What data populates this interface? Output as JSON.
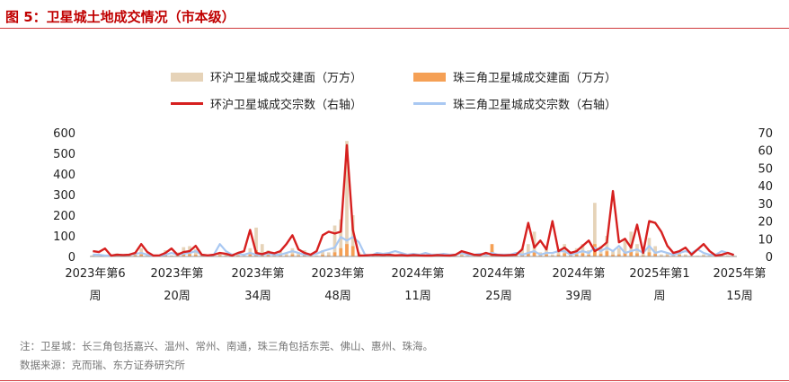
{
  "header": {
    "title": "图 5：卫星城土地成交情况（市本级）"
  },
  "footer": {
    "note": "注：卫星城：长三角包括嘉兴、温州、常州、南通，珠三角包括东莞、佛山、惠州、珠海。",
    "source": "数据来源：克而瑞、东方证券研究所"
  },
  "chart_data": {
    "type": "bar",
    "title": "",
    "xlabel": "",
    "ylabel": "",
    "ylim": [
      0,
      600
    ],
    "y2lim": [
      0,
      70
    ],
    "y_ticks": [
      "0",
      "100",
      "200",
      "300",
      "400",
      "500",
      "600"
    ],
    "y2_ticks": [
      "0",
      "10",
      "20",
      "30",
      "40",
      "50",
      "60",
      "70"
    ],
    "x_tick_labels": [
      [
        "2023年第6",
        "周"
      ],
      [
        "2023年第",
        "20周"
      ],
      [
        "2023年第",
        "34周"
      ],
      [
        "2023年第",
        "48周"
      ],
      [
        "2024年第",
        "11周"
      ],
      [
        "2024年第",
        "25周"
      ],
      [
        "2024年第",
        "39周"
      ],
      [
        "2025年第1",
        "周"
      ],
      [
        "2025年第",
        "15周"
      ]
    ],
    "legend_position": "top",
    "colors": {
      "yrd_area": "#e6d3b8",
      "prd_area": "#f5a055",
      "yrd_count": "#d6201f",
      "prd_count": "#a9c8f2"
    },
    "series": [
      {
        "name": "环沪卫星城成交建面（万方）",
        "axis": "left",
        "kind": "bar",
        "values": [
          6,
          3,
          8,
          2,
          15,
          4,
          10,
          18,
          40,
          6,
          2,
          4,
          30,
          5,
          20,
          45,
          50,
          35,
          10,
          8,
          3,
          20,
          10,
          8,
          15,
          5,
          40,
          140,
          60,
          30,
          10,
          25,
          15,
          40,
          20,
          30,
          10,
          5,
          30,
          20,
          150,
          180,
          560,
          200,
          20,
          5,
          10,
          8,
          3,
          15,
          5,
          10,
          4,
          8,
          3,
          5,
          2,
          4,
          6,
          8,
          3,
          20,
          5,
          4,
          6,
          3,
          30,
          10,
          2,
          5,
          15,
          40,
          60,
          120,
          20,
          50,
          10,
          30,
          60,
          20,
          40,
          60,
          30,
          260,
          50,
          100,
          30,
          40,
          80,
          120,
          60,
          20,
          90,
          50,
          10,
          20,
          10,
          30,
          10,
          5,
          4,
          10,
          5,
          8,
          10,
          6,
          4
        ]
      },
      {
        "name": "珠三角卫星城成交建面（万方）",
        "axis": "left",
        "kind": "bar",
        "values": [
          2,
          1,
          3,
          1,
          5,
          2,
          4,
          6,
          10,
          2,
          1,
          2,
          8,
          2,
          6,
          10,
          12,
          8,
          3,
          2,
          1,
          6,
          3,
          2,
          4,
          2,
          10,
          30,
          15,
          8,
          3,
          6,
          4,
          10,
          5,
          8,
          3,
          2,
          8,
          5,
          20,
          40,
          60,
          50,
          5,
          2,
          3,
          2,
          1,
          4,
          2,
          3,
          1,
          2,
          1,
          2,
          1,
          1,
          2,
          3,
          1,
          5,
          2,
          1,
          2,
          1,
          60,
          3,
          1,
          2,
          4,
          10,
          15,
          20,
          5,
          10,
          3,
          8,
          15,
          5,
          10,
          15,
          8,
          60,
          12,
          25,
          8,
          10,
          20,
          25,
          15,
          5,
          20,
          12,
          3,
          5,
          3,
          8,
          3,
          2,
          1,
          3,
          2,
          3,
          3,
          2,
          1
        ]
      },
      {
        "name": "环沪卫星城成交宗数（右轴）",
        "axis": "right",
        "kind": "line",
        "values": [
          3,
          2.5,
          4.5,
          0.5,
          1,
          0.8,
          1,
          2,
          7,
          2.5,
          0.5,
          0.6,
          2,
          4.5,
          1,
          2.5,
          3,
          6,
          1,
          0.6,
          1,
          2,
          1.5,
          0.5,
          2,
          3,
          15,
          2,
          1.3,
          2.5,
          1.8,
          3,
          7,
          12,
          4,
          2,
          1,
          3,
          12,
          14,
          13,
          14,
          63,
          15,
          0.5,
          0.6,
          0.8,
          1,
          0.8,
          1,
          0.6,
          0.8,
          0.5,
          0.8,
          0.6,
          0.5,
          0.5,
          0.8,
          0.6,
          0.5,
          1,
          3,
          2,
          1,
          0.8,
          2,
          1,
          0.8,
          0.6,
          0.8,
          1,
          4,
          19,
          5,
          9,
          4,
          20,
          3,
          5,
          2,
          3,
          6,
          9,
          3,
          5,
          8,
          37,
          8,
          10,
          5,
          18,
          2,
          20,
          19,
          14,
          6,
          2,
          3,
          5,
          1,
          4,
          7,
          3,
          0.5,
          1,
          2,
          0.8
        ]
      },
      {
        "name": "珠三角卫星城成交宗数（右轴）",
        "axis": "right",
        "kind": "line",
        "values": [
          1,
          1,
          0.5,
          0.5,
          1,
          0.8,
          1,
          1.5,
          2,
          1,
          0.5,
          0.5,
          1,
          2,
          1,
          1.5,
          2,
          3,
          1,
          0.5,
          1,
          7,
          3,
          1,
          1.5,
          1,
          2,
          1,
          1,
          1.5,
          1,
          1,
          2,
          3,
          2,
          1,
          1,
          1.5,
          3,
          4,
          5,
          11,
          9,
          11,
          8,
          1,
          0.5,
          2,
          1.5,
          2,
          3,
          2,
          1,
          1.5,
          1,
          2,
          1,
          1,
          1.5,
          1,
          1,
          2,
          1,
          1,
          1.5,
          1,
          2,
          1,
          1,
          1,
          2,
          1,
          2,
          3,
          1,
          2,
          2,
          3,
          3,
          1,
          2,
          3,
          2,
          5,
          3,
          5,
          3,
          6,
          2,
          3,
          4,
          2,
          6,
          2,
          3,
          2,
          1,
          2,
          3,
          2,
          4,
          2,
          1,
          1,
          3,
          2,
          1
        ]
      }
    ]
  }
}
